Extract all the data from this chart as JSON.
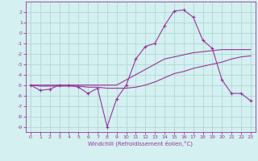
{
  "xlabel": "Windchill (Refroidissement éolien,°C)",
  "background_color": "#d4f0f0",
  "grid_color": "#b0d8d8",
  "line_color": "#993399",
  "hours": [
    0,
    1,
    2,
    3,
    4,
    5,
    6,
    7,
    8,
    9,
    10,
    11,
    12,
    13,
    14,
    15,
    16,
    17,
    18,
    19,
    20,
    21,
    22,
    23
  ],
  "windchill": [
    -5.0,
    -5.5,
    -5.4,
    -5.0,
    -5.0,
    -5.2,
    -5.8,
    -5.3,
    -9.0,
    -6.3,
    -5.0,
    -2.5,
    -1.3,
    -1.0,
    0.7,
    2.1,
    2.2,
    1.5,
    -0.7,
    -1.5,
    -4.5,
    -5.8,
    -5.8,
    -6.5
  ],
  "temp_line1": [
    -5.0,
    -5.0,
    -5.0,
    -5.0,
    -5.0,
    -5.0,
    -5.0,
    -5.0,
    -5.0,
    -5.0,
    -4.5,
    -4.0,
    -3.5,
    -3.0,
    -2.5,
    -2.3,
    -2.1,
    -1.9,
    -1.8,
    -1.7,
    -1.6,
    -1.6,
    -1.6,
    -1.6
  ],
  "temp_line2": [
    -5.0,
    -5.1,
    -5.1,
    -5.1,
    -5.1,
    -5.1,
    -5.2,
    -5.2,
    -5.3,
    -5.3,
    -5.3,
    -5.2,
    -5.0,
    -4.7,
    -4.3,
    -3.9,
    -3.7,
    -3.4,
    -3.2,
    -3.0,
    -2.8,
    -2.5,
    -2.3,
    -2.2
  ],
  "ylim": [
    -9.5,
    3.0
  ],
  "xlim": [
    -0.5,
    23.5
  ],
  "yticks": [
    2,
    1,
    0,
    -1,
    -2,
    -3,
    -4,
    -5,
    -6,
    -7,
    -8,
    -9
  ],
  "xticks": [
    0,
    1,
    2,
    3,
    4,
    5,
    6,
    7,
    8,
    9,
    10,
    11,
    12,
    13,
    14,
    15,
    16,
    17,
    18,
    19,
    20,
    21,
    22,
    23
  ]
}
